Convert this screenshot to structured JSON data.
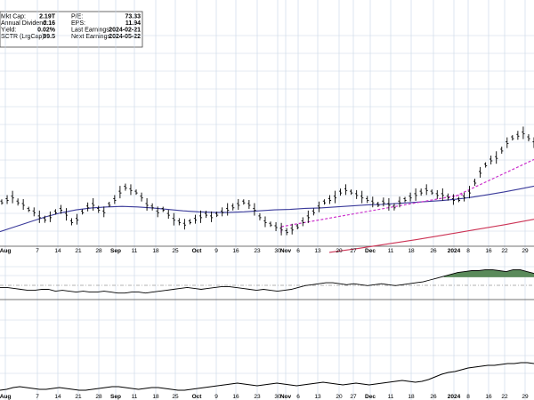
{
  "stats": {
    "left": [
      {
        "label": "Mkt Cap:",
        "value": "2.19T"
      },
      {
        "label": "Annual Dividend:",
        "value": "0.16"
      },
      {
        "label": "Yield:",
        "value": "0.02%"
      },
      {
        "label": "SCTR (LrgCap):",
        "value": "99.5"
      }
    ],
    "right": [
      {
        "label": "P/E:",
        "value": "73.33"
      },
      {
        "label": "EPS:",
        "value": "11.94"
      },
      {
        "label": "Last Earnings:",
        "value": "2024-02-21"
      },
      {
        "label": "Next Earnings:",
        "value": "2024-05-22"
      }
    ]
  },
  "colors": {
    "price": "#000000",
    "ma_50": "#3a3a9a",
    "ma_200": "#cc3355",
    "trendline": "#cc33cc",
    "indicator_fill": "#5a8a5a",
    "grid": "#c8d6e6"
  },
  "chart_data": [
    {
      "type": "line",
      "panel": "price",
      "x_ticks": [
        {
          "label": "Aug",
          "bold": true
        },
        {
          "label": "7",
          "bold": false
        },
        {
          "label": "14",
          "bold": false
        },
        {
          "label": "21",
          "bold": false
        },
        {
          "label": "28",
          "bold": false
        },
        {
          "label": "Sep",
          "bold": true
        },
        {
          "label": "11",
          "bold": false
        },
        {
          "label": "18",
          "bold": false
        },
        {
          "label": "25",
          "bold": false
        },
        {
          "label": "Oct",
          "bold": true
        },
        {
          "label": "9",
          "bold": false
        },
        {
          "label": "16",
          "bold": false
        },
        {
          "label": "23",
          "bold": false
        },
        {
          "label": "30",
          "bold": false
        },
        {
          "label": "Nov",
          "bold": true
        },
        {
          "label": "6",
          "bold": false
        },
        {
          "label": "13",
          "bold": false
        },
        {
          "label": "20",
          "bold": false
        },
        {
          "label": "27",
          "bold": false
        },
        {
          "label": "Dec",
          "bold": true
        },
        {
          "label": "11",
          "bold": false
        },
        {
          "label": "18",
          "bold": false
        },
        {
          "label": "26",
          "bold": false
        },
        {
          "label": "2024",
          "bold": true
        },
        {
          "label": "8",
          "bold": false
        },
        {
          "label": "16",
          "bold": false
        },
        {
          "label": "22",
          "bold": false
        },
        {
          "label": "29",
          "bold": false
        }
      ],
      "series": [
        {
          "role": "price_bars",
          "values": [
            49,
            49.5,
            50,
            49,
            48.5,
            47.5,
            47,
            46,
            45.5,
            46,
            47,
            47.5,
            46.5,
            45,
            45.5,
            47,
            48,
            48.5,
            47.5,
            47,
            48.5,
            49.5,
            51,
            52,
            51.5,
            51,
            50,
            48.5,
            48,
            47,
            47.5,
            46.5,
            45.5,
            45,
            44.5,
            45,
            45.5,
            46,
            46.5,
            46,
            46.5,
            47,
            47.5,
            48,
            48.5,
            49,
            48.5,
            47.5,
            46,
            45,
            44.5,
            44,
            43.5,
            43,
            43.5,
            44,
            45,
            46,
            47,
            48,
            49,
            49.5,
            50,
            51,
            51.5,
            51,
            50.5,
            50,
            49.5,
            49,
            48.5,
            49,
            48.5,
            48,
            49,
            49.5,
            50,
            50.5,
            51,
            51.5,
            51,
            50.5,
            50.5,
            50,
            49.5,
            49.5,
            50,
            51,
            53,
            55,
            56.5,
            57.5,
            58,
            59.5,
            61,
            62,
            62.5,
            63,
            62,
            61
          ]
        },
        {
          "role": "ma_50",
          "values": [
            43,
            44,
            45,
            46,
            46.8,
            47.4,
            47.8,
            48,
            48.1,
            48,
            47.8,
            47.5,
            47.2,
            47,
            46.9,
            46.9,
            47,
            47.2,
            47.4,
            47.5,
            47.7,
            47.8,
            48,
            48.2,
            48.4,
            48.5,
            48.7,
            48.9,
            49.1,
            49.3,
            49.6,
            50,
            50.5,
            51,
            51.6,
            52.2
          ]
        },
        {
          "role": "ma_200",
          "values": [
            38.8,
            39.6,
            40.5,
            41.4,
            42.4,
            43.4,
            44.4,
            45.5
          ]
        },
        {
          "role": "trendline_1",
          "values": [
            44,
            50.5
          ]
        },
        {
          "role": "trendline_2",
          "values": [
            50.2,
            57.6
          ]
        }
      ]
    },
    {
      "type": "area",
      "panel": "indicator_1",
      "series": [
        {
          "values": [
            52,
            52,
            51,
            50,
            49,
            49,
            50,
            50,
            48,
            49,
            48,
            47,
            48,
            47,
            47,
            48,
            47,
            46,
            46,
            47,
            47,
            46,
            47,
            48,
            49,
            50,
            51,
            52,
            51,
            50,
            51,
            52,
            53,
            53,
            52,
            51,
            50,
            49,
            50,
            49,
            48,
            49,
            50,
            52,
            54,
            55,
            56,
            57,
            57,
            56,
            55,
            56,
            55,
            54,
            55,
            56,
            55,
            54,
            55,
            56,
            57,
            58,
            60,
            62,
            64,
            66,
            68,
            69,
            70,
            70,
            71,
            71,
            70,
            69,
            71,
            71,
            69,
            67
          ]
        }
      ]
    },
    {
      "type": "line",
      "panel": "indicator_2",
      "series": [
        {
          "values": [
            10,
            11,
            13,
            14,
            13,
            12,
            11,
            11,
            12,
            13,
            12,
            11,
            10,
            10,
            11,
            12,
            13,
            14,
            14,
            13,
            12,
            11,
            12,
            13,
            13,
            12,
            11,
            10,
            10,
            11,
            12,
            13,
            14,
            15,
            16,
            17,
            18,
            17,
            16,
            15,
            16,
            17,
            18,
            17,
            16,
            15,
            16,
            17,
            18,
            19,
            18,
            17,
            16,
            17,
            18,
            17,
            16,
            17,
            18,
            19,
            20,
            21,
            20,
            19,
            20,
            22,
            25,
            28,
            30,
            31,
            33,
            35,
            36,
            37,
            38,
            38,
            39,
            40,
            40,
            41,
            41,
            40
          ]
        }
      ]
    }
  ]
}
